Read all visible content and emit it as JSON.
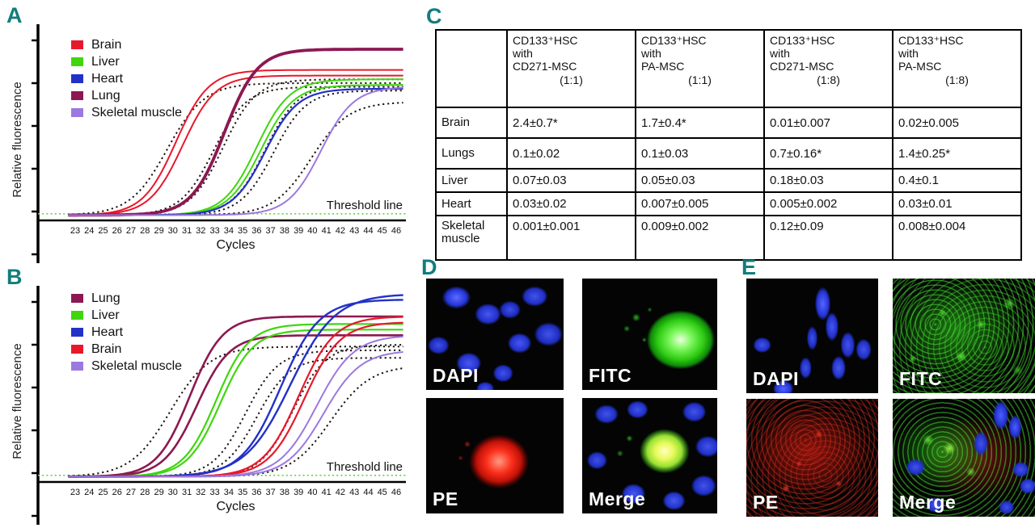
{
  "panel_labels": {
    "a": "A",
    "b": "B",
    "c": "C",
    "d": "D",
    "e": "E"
  },
  "colors": {
    "panel_letter": "#127d7c",
    "threshold_line": "#55dd33",
    "axis": "#000000",
    "brain": "#e8182b",
    "liver": "#3fd60e",
    "heart": "#2331c8",
    "lung": "#8c1852",
    "skeletal_muscle": "#9b79e0",
    "dotted_control": "#1c1410"
  },
  "chart_data": [
    {
      "id": "A",
      "type": "line",
      "title": "",
      "xlabel": "Cycles",
      "ylabel": "Relative fluorescence",
      "threshold_label": "Threshold line",
      "x_ticks": [
        23,
        24,
        25,
        26,
        27,
        28,
        29,
        30,
        31,
        32,
        33,
        34,
        35,
        36,
        37,
        38,
        39,
        40,
        41,
        42,
        43,
        44,
        45,
        46
      ],
      "xlim": [
        22.5,
        46.5
      ],
      "ylim": [
        0,
        1
      ],
      "y_ticks": 6,
      "grid": false,
      "legend_position": "top-left",
      "threshold_value": 0.035,
      "series": [
        {
          "name": "Brain",
          "color": "#e8182b",
          "style": "solid",
          "width": 2,
          "lines": [
            {
              "mid": 30.2,
              "plateau": 0.8
            },
            {
              "mid": 30.7,
              "plateau": 0.77
            }
          ]
        },
        {
          "name": "Liver",
          "color": "#3fd60e",
          "style": "solid",
          "width": 2,
          "lines": [
            {
              "mid": 36.0,
              "plateau": 0.75
            },
            {
              "mid": 36.3,
              "plateau": 0.72
            }
          ]
        },
        {
          "name": "Heart",
          "color": "#2331c8",
          "style": "solid",
          "width": 2.2,
          "lines": [
            {
              "mid": 36.6,
              "plateau": 0.7
            }
          ]
        },
        {
          "name": "Lung",
          "color": "#8c1852",
          "style": "solid",
          "width": 3.8,
          "lines": [
            {
              "mid": 33.7,
              "plateau": 0.91
            }
          ]
        },
        {
          "name": "Skeletal muscle",
          "color": "#9b79e0",
          "style": "solid",
          "width": 2,
          "lines": [
            {
              "mid": 40.6,
              "plateau": 0.71
            }
          ]
        },
        {
          "name": "",
          "color": "#1c1410",
          "style": "dotted",
          "width": 2,
          "lines": [
            {
              "mid": 29.6,
              "plateau": 0.73,
              "k": 0.75
            },
            {
              "mid": 32.9,
              "plateau": 0.71
            },
            {
              "mid": 33.6,
              "plateau": 0.75
            },
            {
              "mid": 36.6,
              "plateau": 0.72
            },
            {
              "mid": 37.2,
              "plateau": 0.69
            },
            {
              "mid": 39.9,
              "plateau": 0.63,
              "k": 0.75
            }
          ]
        }
      ]
    },
    {
      "id": "B",
      "type": "line",
      "title": "",
      "xlabel": "Cycles",
      "ylabel": "Relative fluorescence",
      "threshold_label": "Threshold line",
      "x_ticks": [
        23,
        24,
        25,
        26,
        27,
        28,
        29,
        30,
        31,
        32,
        33,
        34,
        35,
        36,
        37,
        38,
        39,
        40,
        41,
        42,
        43,
        44,
        45,
        46
      ],
      "xlim": [
        22.5,
        46.5
      ],
      "ylim": [
        0,
        1
      ],
      "y_ticks": 6,
      "grid": false,
      "legend_position": "top-left",
      "threshold_value": 0.035,
      "series": [
        {
          "name": "Lung",
          "color": "#8c1852",
          "style": "solid",
          "width": 2.6,
          "lines": [
            {
              "mid": 31.2,
              "plateau": 0.88
            },
            {
              "mid": 31.7,
              "plateau": 0.78
            }
          ]
        },
        {
          "name": "Liver",
          "color": "#3fd60e",
          "style": "solid",
          "width": 2.2,
          "lines": [
            {
              "mid": 33.1,
              "plateau": 0.84
            },
            {
              "mid": 33.4,
              "plateau": 0.81
            }
          ]
        },
        {
          "name": "Heart",
          "color": "#2331c8",
          "style": "solid",
          "width": 2.4,
          "lines": [
            {
              "mid": 37.7,
              "plateau": 0.97,
              "k": 0.72
            },
            {
              "mid": 38.4,
              "plateau": 1.0,
              "k": 0.62
            }
          ]
        },
        {
          "name": "Brain",
          "color": "#e8182b",
          "style": "solid",
          "width": 2.2,
          "lines": [
            {
              "mid": 39.0,
              "plateau": 0.88,
              "k": 0.78
            },
            {
              "mid": 39.4,
              "plateau": 0.85,
              "k": 0.78
            }
          ]
        },
        {
          "name": "Skeletal muscle",
          "color": "#9b79e0",
          "style": "solid",
          "width": 2,
          "lines": [
            {
              "mid": 40.3,
              "plateau": 0.78,
              "k": 0.75
            },
            {
              "mid": 40.8,
              "plateau": 0.7,
              "k": 0.75
            }
          ]
        },
        {
          "name": "",
          "color": "#1c1410",
          "style": "dotted",
          "width": 2,
          "lines": [
            {
              "mid": 29.8,
              "plateau": 0.72,
              "k": 0.7
            },
            {
              "mid": 35.2,
              "plateau": 0.7
            },
            {
              "mid": 36.0,
              "plateau": 0.66
            },
            {
              "mid": 38.6,
              "plateau": 0.73
            },
            {
              "mid": 41.3,
              "plateau": 0.62,
              "k": 0.7
            }
          ]
        }
      ]
    }
  ],
  "table": {
    "columns": [
      {
        "name": "CD133⁺HSC\nwith\nCD271-MSC",
        "ratio": "(1:1)"
      },
      {
        "name": "CD133⁺HSC\nwith\nPA-MSC",
        "ratio": "(1:1)"
      },
      {
        "name": "CD133⁺HSC\nwith\nCD271-MSC",
        "ratio": "(1:8)"
      },
      {
        "name": "CD133⁺HSC\nwith\nPA-MSC",
        "ratio": "(1:8)"
      }
    ],
    "rows": [
      {
        "label": "Brain",
        "values": [
          "2.4±0.7*",
          "1.7±0.4*",
          "0.01±0.007",
          "0.02±0.005"
        ]
      },
      {
        "label": "Lungs",
        "values": [
          "0.1±0.02",
          "0.1±0.03",
          "0.7±0.16*",
          "1.4±0.25*"
        ]
      },
      {
        "label": "Liver",
        "values": [
          "0.07±0.03",
          "0.05±0.03",
          "0.18±0.03",
          "0.4±0.1"
        ]
      },
      {
        "label": "Heart",
        "values": [
          "0.03±0.02",
          "0.007±0.005",
          "0.005±0.002",
          "0.03±0.01"
        ]
      },
      {
        "label": "Skeletal muscle",
        "values": [
          "0.001±0.001",
          "0.009±0.002",
          "0.12±0.09",
          "0.008±0.004"
        ]
      }
    ]
  },
  "microscopy": {
    "d": {
      "tiles": [
        {
          "label": "DAPI"
        },
        {
          "label": "FITC"
        },
        {
          "label": "PE"
        },
        {
          "label": "Merge"
        }
      ]
    },
    "e": {
      "tiles": [
        {
          "label": "DAPI"
        },
        {
          "label": "FITC"
        },
        {
          "label": "PE"
        },
        {
          "label": "Merge"
        }
      ]
    }
  }
}
